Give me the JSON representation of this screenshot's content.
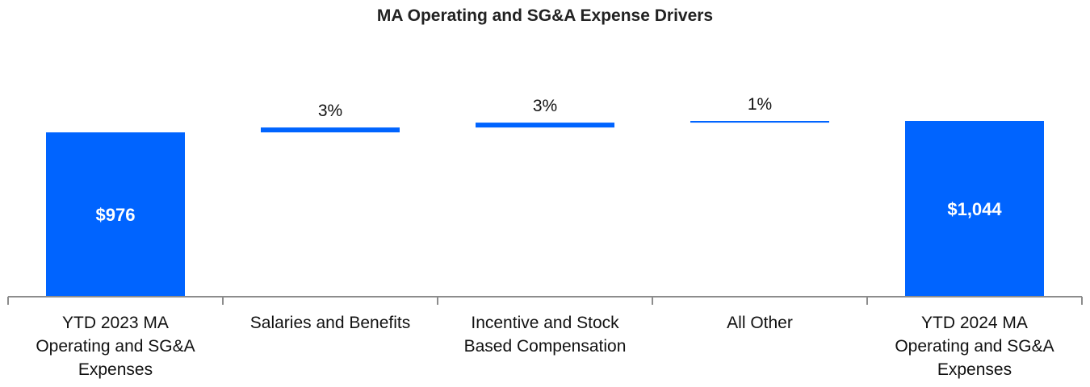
{
  "chart_data": {
    "type": "waterfall",
    "title": "MA Operating and SG&A Expense Drivers",
    "bar_color": "#0064FF",
    "axis_color": "#8C8C8C",
    "categories": [
      "YTD 2023 MA Operating and SG&A Expenses",
      "Salaries and Benefits",
      "Incentive and Stock Based Compensation",
      "All Other",
      "YTD 2024 MA Operating and SG&A Expenses"
    ],
    "category_lines": [
      [
        "YTD 2023 MA",
        "Operating and SG&A",
        "Expenses"
      ],
      [
        "Salaries and Benefits"
      ],
      [
        "Incentive and Stock",
        "Based Compensation"
      ],
      [
        "All Other"
      ],
      [
        "YTD 2024 MA",
        "Operating and SG&A",
        "Expenses"
      ]
    ],
    "bars": [
      {
        "kind": "total",
        "value": 976,
        "label": "$976"
      },
      {
        "kind": "delta",
        "value": 29,
        "label": "3%"
      },
      {
        "kind": "delta",
        "value": 29,
        "label": "3%"
      },
      {
        "kind": "delta",
        "value": 10,
        "label": "1%"
      },
      {
        "kind": "total",
        "value": 1044,
        "label": "$1,044"
      }
    ]
  }
}
